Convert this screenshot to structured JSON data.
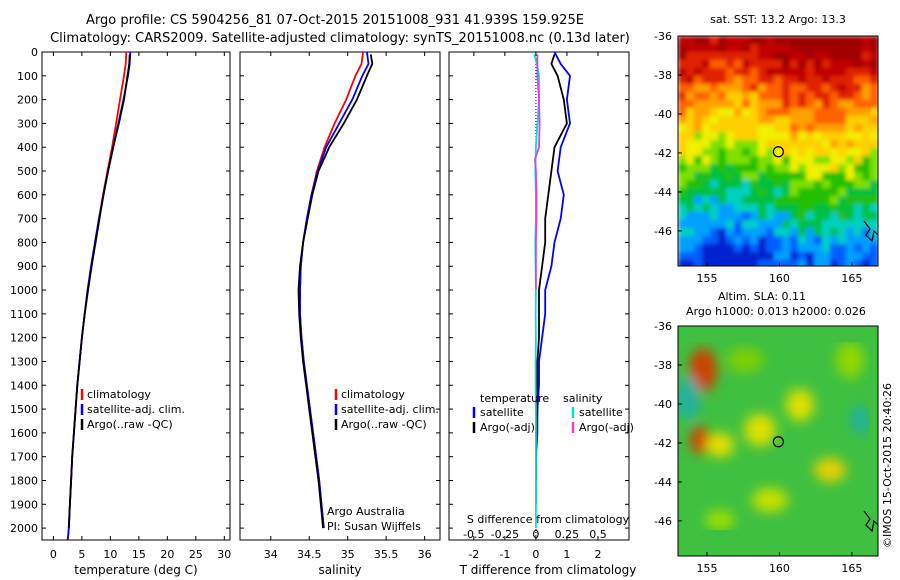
{
  "title": {
    "line1": "Argo profile: CS 5904256_81 07-Oct-2015 20151008_931 41.939S 159.925E",
    "line2": "Climatology: CARS2009. Satellite-adjusted climatology: synTS_20151008.nc (0.13d later)"
  },
  "timestamp": "©IMOS 15-Oct-2015 20:40:26",
  "colors": {
    "climatology": "#ff0000",
    "satellite": "#0000ff",
    "argo": "#000000",
    "salinity_satellite": "#00e0e0",
    "salinity_argo": "#e040e0"
  },
  "chart_data": [
    {
      "type": "line",
      "xlabel": "temperature (deg C)",
      "ylabel": "",
      "xlim": [
        -2,
        31
      ],
      "ylim": [
        2050,
        0
      ],
      "xticks": [
        0,
        5,
        10,
        15,
        20,
        25,
        30
      ],
      "yticks": [
        0,
        100,
        200,
        300,
        400,
        500,
        600,
        700,
        800,
        900,
        1000,
        1100,
        1200,
        1300,
        1400,
        1500,
        1600,
        1700,
        1800,
        1900,
        2000
      ],
      "legend": [
        "climatology",
        "satellite-adj. clim.",
        "Argo(..raw -QC)"
      ],
      "legend_position": "lower-right",
      "series": [
        {
          "name": "climatology",
          "color": "#ff0000",
          "x": [
            12.8,
            12.7,
            12.4,
            11.7,
            11.0,
            10.3,
            9.5,
            8.7,
            8.0,
            7.3,
            6.7,
            6.0,
            5.5,
            5.0,
            4.6,
            4.2,
            3.9,
            3.6,
            3.3,
            3.1,
            2.9,
            2.7,
            2.6,
            2.5,
            2.4
          ],
          "y": [
            0,
            50,
            100,
            200,
            300,
            400,
            500,
            600,
            700,
            800,
            900,
            1000,
            1100,
            1200,
            1300,
            1400,
            1500,
            1600,
            1700,
            1800,
            1900,
            2000,
            2030,
            2050,
            2050
          ]
        },
        {
          "name": "satellite-adj. clim.",
          "color": "#0000ff",
          "x": [
            13.5,
            13.4,
            13.1,
            12.3,
            11.4,
            10.5,
            9.6,
            8.8,
            8.0,
            7.3,
            6.6,
            6.0,
            5.5,
            5.0,
            4.6,
            4.2,
            3.9,
            3.6,
            3.3,
            3.1,
            2.9,
            2.7,
            2.6,
            2.5
          ],
          "y": [
            0,
            50,
            100,
            200,
            300,
            400,
            500,
            600,
            700,
            800,
            900,
            1000,
            1100,
            1200,
            1300,
            1400,
            1500,
            1600,
            1700,
            1800,
            1900,
            2000,
            2030,
            2050
          ]
        },
        {
          "name": "Argo(..raw -QC)",
          "color": "#000000",
          "x": [
            13.4,
            13.3,
            13.0,
            12.4,
            11.5,
            10.5,
            9.6,
            8.8,
            8.1,
            7.4,
            6.7,
            6.1,
            5.5,
            5.0,
            4.6,
            4.2,
            3.9,
            3.6,
            3.3,
            3.1,
            2.9,
            2.7
          ],
          "y": [
            10,
            50,
            100,
            200,
            300,
            400,
            500,
            600,
            700,
            800,
            900,
            1000,
            1100,
            1200,
            1300,
            1400,
            1500,
            1600,
            1700,
            1800,
            1900,
            2000
          ]
        }
      ]
    },
    {
      "type": "line",
      "xlabel": "salinity",
      "xlim": [
        33.6,
        36.2
      ],
      "ylim": [
        2050,
        0
      ],
      "xticks": [
        34,
        34.5,
        35,
        35.5,
        36
      ],
      "legend": [
        "climatology",
        "satellite-adj. clim.",
        "Argo(..raw -QC)"
      ],
      "legend_position": "lower-right",
      "annotations": [
        "Argo Australia",
        "PI: Susan Wijffels"
      ],
      "series": [
        {
          "name": "climatology",
          "color": "#ff0000",
          "x": [
            35.2,
            35.18,
            35.1,
            34.98,
            34.83,
            34.7,
            34.6,
            34.53,
            34.47,
            34.42,
            34.39,
            34.38,
            34.38,
            34.4,
            34.43,
            34.47,
            34.51,
            34.55,
            34.59,
            34.63,
            34.66,
            34.69
          ],
          "y": [
            0,
            50,
            100,
            200,
            300,
            400,
            500,
            600,
            700,
            800,
            900,
            1000,
            1100,
            1200,
            1300,
            1400,
            1500,
            1600,
            1700,
            1800,
            1900,
            2000
          ]
        },
        {
          "name": "satellite-adj. clim.",
          "color": "#0000ff",
          "x": [
            35.25,
            35.27,
            35.19,
            35.06,
            34.89,
            34.72,
            34.61,
            34.53,
            34.47,
            34.42,
            34.39,
            34.38,
            34.38,
            34.4,
            34.43,
            34.47,
            34.51,
            34.55,
            34.59,
            34.63,
            34.66,
            34.69
          ],
          "y": [
            0,
            50,
            100,
            200,
            300,
            400,
            500,
            600,
            700,
            800,
            900,
            1000,
            1100,
            1200,
            1300,
            1400,
            1500,
            1600,
            1700,
            1800,
            1900,
            2000
          ]
        },
        {
          "name": "Argo(..raw -QC)",
          "color": "#000000",
          "x": [
            35.3,
            35.32,
            35.25,
            35.12,
            34.95,
            34.76,
            34.62,
            34.54,
            34.48,
            34.42,
            34.38,
            34.36,
            34.37,
            34.39,
            34.42,
            34.46,
            34.5,
            34.54,
            34.58,
            34.62,
            34.65,
            34.68
          ],
          "y": [
            10,
            50,
            100,
            200,
            300,
            400,
            500,
            600,
            700,
            800,
            900,
            1000,
            1100,
            1200,
            1300,
            1400,
            1500,
            1600,
            1700,
            1800,
            1900,
            2000
          ]
        }
      ]
    },
    {
      "type": "line",
      "xlabel": "T difference from climatology",
      "xlabel_top": "S difference from climatology",
      "xlim": [
        -2.8,
        3.0
      ],
      "ylim": [
        2050,
        0
      ],
      "xticks": [
        -2,
        -1,
        0,
        1,
        2
      ],
      "xticks_s": [
        -0.5,
        -0.25,
        0,
        0.25,
        0.5
      ],
      "legend_groups": [
        {
          "title": "temperature",
          "entries": [
            "satellite",
            "Argo(-adj)"
          ]
        },
        {
          "title": "salinity",
          "entries": [
            "satellite",
            "Argo(-adj)"
          ]
        }
      ],
      "series": [
        {
          "name": "temperature satellite",
          "color": "#0000ff",
          "x": [
            0.6,
            0.8,
            1.1,
            1.0,
            1.1,
            0.8,
            0.7,
            0.9,
            0.8,
            0.6,
            0.5,
            0.3,
            0.3,
            0.2,
            0.1,
            0.1,
            0.05,
            0.05,
            0.0,
            0.0,
            0.0
          ],
          "y": [
            0,
            50,
            100,
            200,
            300,
            400,
            500,
            600,
            700,
            800,
            900,
            1000,
            1100,
            1200,
            1300,
            1400,
            1500,
            1600,
            1700,
            1800,
            1900
          ]
        },
        {
          "name": "temperature Argo(-adj)",
          "color": "#000000",
          "x": [
            0.6,
            0.5,
            0.7,
            0.9,
            1.0,
            0.6,
            0.5,
            0.4,
            0.3,
            0.3,
            0.2,
            0.1,
            0.1,
            0.1,
            0.05,
            0.05,
            0.05,
            0.0,
            0.0,
            0.0
          ],
          "y": [
            10,
            50,
            100,
            200,
            300,
            400,
            500,
            600,
            700,
            800,
            900,
            1000,
            1100,
            1200,
            1300,
            1400,
            1500,
            1600,
            1700,
            1800
          ]
        },
        {
          "name": "salinity satellite",
          "color": "#00e0e0",
          "x": [
            -0.05,
            0.05,
            0.1,
            0.1,
            0.05,
            0.0,
            -0.02,
            0.0,
            0.0,
            -0.02,
            -0.01,
            0.0,
            -0.01,
            0.0,
            -0.01,
            -0.01,
            0.0,
            0.0,
            0.0,
            0.0
          ],
          "y": [
            10,
            60,
            100,
            200,
            300,
            400,
            500,
            600,
            700,
            800,
            900,
            1000,
            1100,
            1200,
            1300,
            1400,
            1500,
            1600,
            1800,
            2000
          ]
        },
        {
          "name": "salinity Argo(-adj)",
          "color": "#e040e0",
          "x": [
            0.05,
            0.05,
            0.05,
            0.1,
            0.12,
            0.1,
            -0.03,
            0.0,
            0.02,
            0.02,
            0.0,
            0.0,
            0.0
          ],
          "y": [
            10,
            60,
            100,
            200,
            300,
            400,
            450,
            500,
            600,
            700,
            800,
            900,
            1000
          ]
        }
      ]
    },
    {
      "type": "heatmap",
      "title": "sat. SST: 13.2  Argo: 13.3",
      "xlim": [
        153,
        166.8
      ],
      "ylim": [
        -47.8,
        -36
      ],
      "xticks": [
        155,
        160,
        165
      ],
      "yticks": [
        -36,
        -38,
        -40,
        -42,
        -44,
        -46
      ],
      "marker": {
        "lon": 159.925,
        "lat": -41.939
      }
    },
    {
      "type": "heatmap",
      "title": "Altim. SLA: 0.11",
      "subtitle": "Argo h1000: 0.013 h2000: 0.026",
      "xlim": [
        153,
        166.8
      ],
      "ylim": [
        -47.8,
        -36
      ],
      "xticks": [
        155,
        160,
        165
      ],
      "yticks": [
        -36,
        -38,
        -40,
        -42,
        -44,
        -46
      ],
      "marker": {
        "lon": 159.925,
        "lat": -41.939
      }
    }
  ]
}
